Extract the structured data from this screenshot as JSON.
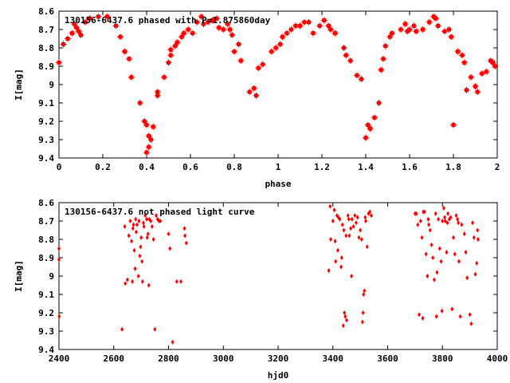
{
  "chart_data": [
    {
      "type": "scatter",
      "title": "130156-6437.6 phased with P=1.875860day",
      "xlabel": "phase",
      "ylabel": "I[mag]",
      "xlim": [
        0,
        2
      ],
      "ylim": [
        9.4,
        8.6
      ],
      "y_inverted": true,
      "xticks": [
        "0",
        "0.2",
        "0.4",
        "0.6",
        "0.8",
        "1",
        "1.2",
        "1.4",
        "1.6",
        "1.8",
        "2"
      ],
      "yticks": [
        "8.6",
        "8.7",
        "8.8",
        "8.9",
        "9",
        "9.1",
        "9.2",
        "9.3",
        "9.4"
      ],
      "grid": false,
      "marker_color": "#ff0000",
      "marker": "filled-square-cross",
      "series": [
        {
          "points": [
            [
              0.0,
              8.88
            ],
            [
              0.02,
              8.78
            ],
            [
              0.04,
              8.75
            ],
            [
              0.06,
              8.72
            ],
            [
              0.07,
              8.67
            ],
            [
              0.08,
              8.69
            ],
            [
              0.09,
              8.71
            ],
            [
              0.1,
              8.73
            ],
            [
              0.12,
              8.66
            ],
            [
              0.14,
              8.64
            ],
            [
              0.18,
              8.63
            ],
            [
              0.22,
              8.63
            ],
            [
              0.26,
              8.68
            ],
            [
              0.28,
              8.74
            ],
            [
              0.3,
              8.82
            ],
            [
              0.32,
              8.86
            ],
            [
              0.33,
              8.96
            ],
            [
              0.37,
              9.1
            ],
            [
              0.39,
              9.2
            ],
            [
              0.4,
              9.22
            ],
            [
              0.41,
              9.28
            ],
            [
              0.42,
              9.3
            ],
            [
              0.43,
              9.23
            ],
            [
              0.4,
              9.37
            ],
            [
              0.41,
              9.34
            ],
            [
              0.45,
              9.06
            ],
            [
              0.45,
              9.04
            ],
            [
              0.48,
              8.96
            ],
            [
              0.5,
              8.88
            ],
            [
              0.51,
              8.84
            ],
            [
              0.51,
              8.81
            ],
            [
              0.53,
              8.79
            ],
            [
              0.54,
              8.77
            ],
            [
              0.56,
              8.74
            ],
            [
              0.57,
              8.72
            ],
            [
              0.59,
              8.7
            ],
            [
              0.61,
              8.72
            ],
            [
              0.63,
              8.66
            ],
            [
              0.65,
              8.63
            ],
            [
              0.66,
              8.67
            ],
            [
              0.68,
              8.66
            ],
            [
              0.7,
              8.65
            ],
            [
              0.72,
              8.64
            ],
            [
              0.73,
              8.69
            ],
            [
              0.75,
              8.7
            ],
            [
              0.77,
              8.67
            ],
            [
              0.78,
              8.7
            ],
            [
              0.79,
              8.73
            ],
            [
              0.8,
              8.82
            ],
            [
              0.82,
              8.78
            ],
            [
              0.83,
              8.87
            ],
            [
              0.87,
              9.04
            ],
            [
              0.89,
              9.02
            ],
            [
              0.9,
              9.06
            ],
            [
              0.91,
              8.91
            ],
            [
              0.93,
              8.89
            ],
            [
              0.97,
              8.82
            ],
            [
              0.99,
              8.8
            ],
            [
              1.01,
              8.78
            ],
            [
              1.02,
              8.74
            ],
            [
              1.04,
              8.72
            ],
            [
              1.06,
              8.7
            ],
            [
              1.08,
              8.68
            ],
            [
              1.1,
              8.68
            ],
            [
              1.12,
              8.66
            ],
            [
              1.14,
              8.66
            ],
            [
              1.16,
              8.72
            ],
            [
              1.19,
              8.68
            ],
            [
              1.21,
              8.65
            ],
            [
              1.23,
              8.68
            ],
            [
              1.24,
              8.7
            ],
            [
              1.26,
              8.72
            ],
            [
              1.3,
              8.8
            ],
            [
              1.31,
              8.84
            ],
            [
              1.33,
              8.87
            ],
            [
              1.36,
              8.95
            ],
            [
              1.38,
              8.97
            ],
            [
              1.4,
              9.29
            ],
            [
              1.41,
              9.22
            ],
            [
              1.42,
              9.24
            ],
            [
              1.44,
              9.18
            ],
            [
              1.46,
              9.1
            ],
            [
              1.47,
              8.92
            ],
            [
              1.48,
              8.86
            ],
            [
              1.49,
              8.79
            ],
            [
              1.51,
              8.74
            ],
            [
              1.52,
              8.72
            ],
            [
              1.56,
              8.7
            ],
            [
              1.58,
              8.67
            ],
            [
              1.59,
              8.71
            ],
            [
              1.6,
              8.7
            ],
            [
              1.62,
              8.68
            ],
            [
              1.63,
              8.71
            ],
            [
              1.66,
              8.7
            ],
            [
              1.69,
              8.66
            ],
            [
              1.71,
              8.63
            ],
            [
              1.72,
              8.64
            ],
            [
              1.73,
              8.68
            ],
            [
              1.76,
              8.71
            ],
            [
              1.78,
              8.7
            ],
            [
              1.79,
              8.74
            ],
            [
              1.8,
              9.22
            ],
            [
              1.82,
              8.82
            ],
            [
              1.84,
              8.84
            ],
            [
              1.85,
              8.88
            ],
            [
              1.86,
              9.03
            ],
            [
              1.88,
              8.96
            ],
            [
              1.9,
              9.01
            ],
            [
              1.91,
              9.04
            ],
            [
              1.93,
              8.94
            ],
            [
              1.95,
              8.93
            ],
            [
              1.97,
              8.87
            ],
            [
              1.98,
              8.88
            ],
            [
              1.99,
              8.9
            ]
          ]
        }
      ]
    },
    {
      "type": "scatter",
      "title": "130156-6437.6 not phased light curve",
      "xlabel": "hjd0",
      "ylabel": "I[mag]",
      "xlim": [
        2400,
        4000
      ],
      "ylim": [
        9.4,
        8.6
      ],
      "y_inverted": true,
      "xticks": [
        "2400",
        "2600",
        "2800",
        "3000",
        "3200",
        "3400",
        "3600",
        "3800",
        "4000"
      ],
      "yticks": [
        "8.6",
        "8.7",
        "8.8",
        "8.9",
        "9",
        "9.1",
        "9.2",
        "9.3",
        "9.4"
      ],
      "grid": false,
      "marker_color": "#ff0000",
      "marker": "diamond",
      "series": [
        {
          "points": [
            [
              2400,
              8.85
            ],
            [
              2400,
              8.91
            ],
            [
              2401,
              9.22
            ],
            [
              2630,
              9.29
            ],
            [
              2640,
              8.73
            ],
            [
              2642,
              9.04
            ],
            [
              2650,
              9.02
            ],
            [
              2655,
              8.78
            ],
            [
              2660,
              8.7
            ],
            [
              2665,
              8.81
            ],
            [
              2668,
              9.03
            ],
            [
              2670,
              8.74
            ],
            [
              2672,
              8.72
            ],
            [
              2675,
              8.86
            ],
            [
              2678,
              8.96
            ],
            [
              2680,
              8.69
            ],
            [
              2682,
              8.76
            ],
            [
              2685,
              8.72
            ],
            [
              2690,
              9.0
            ],
            [
              2692,
              8.7
            ],
            [
              2695,
              8.89
            ],
            [
              2698,
              8.84
            ],
            [
              2700,
              8.79
            ],
            [
              2703,
              8.92
            ],
            [
              2705,
              9.03
            ],
            [
              2708,
              8.71
            ],
            [
              2710,
              8.73
            ],
            [
              2715,
              8.67
            ],
            [
              2720,
              8.69
            ],
            [
              2722,
              8.79
            ],
            [
              2725,
              8.77
            ],
            [
              2728,
              9.05
            ],
            [
              2730,
              8.69
            ],
            [
              2735,
              8.7
            ],
            [
              2740,
              8.73
            ],
            [
              2745,
              8.8
            ],
            [
              2750,
              9.29
            ],
            [
              2755,
              8.67
            ],
            [
              2760,
              8.69
            ],
            [
              2765,
              8.7
            ],
            [
              2770,
              8.7
            ],
            [
              2800,
              8.77
            ],
            [
              2805,
              8.85
            ],
            [
              2815,
              9.36
            ],
            [
              2830,
              9.03
            ],
            [
              2845,
              9.03
            ],
            [
              2858,
              8.74
            ],
            [
              2860,
              8.78
            ],
            [
              2865,
              8.82
            ],
            [
              3385,
              8.97
            ],
            [
              3390,
              8.62
            ],
            [
              3392,
              8.8
            ],
            [
              3400,
              8.7
            ],
            [
              3405,
              8.64
            ],
            [
              3408,
              8.81
            ],
            [
              3410,
              8.92
            ],
            [
              3415,
              8.67
            ],
            [
              3418,
              8.86
            ],
            [
              3420,
              8.68
            ],
            [
              3425,
              8.69
            ],
            [
              3430,
              8.95
            ],
            [
              3432,
              8.9
            ],
            [
              3435,
              8.72
            ],
            [
              3438,
              9.27
            ],
            [
              3440,
              8.75
            ],
            [
              3442,
              9.2
            ],
            [
              3445,
              9.22
            ],
            [
              3448,
              8.78
            ],
            [
              3450,
              9.24
            ],
            [
              3455,
              8.67
            ],
            [
              3458,
              8.69
            ],
            [
              3460,
              8.78
            ],
            [
              3465,
              8.74
            ],
            [
              3468,
              9.0
            ],
            [
              3470,
              8.69
            ],
            [
              3475,
              8.73
            ],
            [
              3480,
              8.67
            ],
            [
              3485,
              8.71
            ],
            [
              3490,
              8.68
            ],
            [
              3495,
              8.79
            ],
            [
              3500,
              8.75
            ],
            [
              3505,
              8.8
            ],
            [
              3508,
              9.25
            ],
            [
              3510,
              9.2
            ],
            [
              3512,
              9.1
            ],
            [
              3515,
              9.08
            ],
            [
              3518,
              8.68
            ],
            [
              3520,
              8.7
            ],
            [
              3525,
              8.84
            ],
            [
              3530,
              8.66
            ],
            [
              3535,
              8.65
            ],
            [
              3540,
              8.67
            ],
            [
              3700,
              8.66
            ],
            [
              3705,
              8.66
            ],
            [
              3710,
              8.72
            ],
            [
              3715,
              9.21
            ],
            [
              3720,
              8.7
            ],
            [
              3725,
              8.79
            ],
            [
              3728,
              9.23
            ],
            [
              3730,
              8.65
            ],
            [
              3735,
              8.65
            ],
            [
              3740,
              8.88
            ],
            [
              3745,
              9.0
            ],
            [
              3748,
              8.69
            ],
            [
              3750,
              8.72
            ],
            [
              3755,
              8.75
            ],
            [
              3760,
              8.83
            ],
            [
              3765,
              8.9
            ],
            [
              3770,
              9.02
            ],
            [
              3775,
              8.66
            ],
            [
              3778,
              9.22
            ],
            [
              3780,
              8.98
            ],
            [
              3785,
              8.69
            ],
            [
              3790,
              8.85
            ],
            [
              3795,
              8.92
            ],
            [
              3798,
              9.19
            ],
            [
              3800,
              8.7
            ],
            [
              3805,
              8.63
            ],
            [
              3808,
              8.68
            ],
            [
              3810,
              8.7
            ],
            [
              3815,
              8.87
            ],
            [
              3818,
              8.71
            ],
            [
              3820,
              8.66
            ],
            [
              3825,
              8.69
            ],
            [
              3830,
              8.68
            ],
            [
              3835,
              9.18
            ],
            [
              3840,
              8.79
            ],
            [
              3845,
              8.88
            ],
            [
              3850,
              8.67
            ],
            [
              3855,
              8.69
            ],
            [
              3858,
              8.71
            ],
            [
              3860,
              8.92
            ],
            [
              3865,
              9.22
            ],
            [
              3870,
              8.72
            ],
            [
              3880,
              8.77
            ],
            [
              3885,
              8.87
            ],
            [
              3890,
              9.01
            ],
            [
              3900,
              9.21
            ],
            [
              3905,
              9.26
            ],
            [
              3910,
              8.71
            ],
            [
              3915,
              8.79
            ],
            [
              3920,
              8.99
            ],
            [
              3925,
              8.93
            ],
            [
              3928,
              8.75
            ],
            [
              3930,
              8.8
            ]
          ]
        }
      ]
    }
  ]
}
